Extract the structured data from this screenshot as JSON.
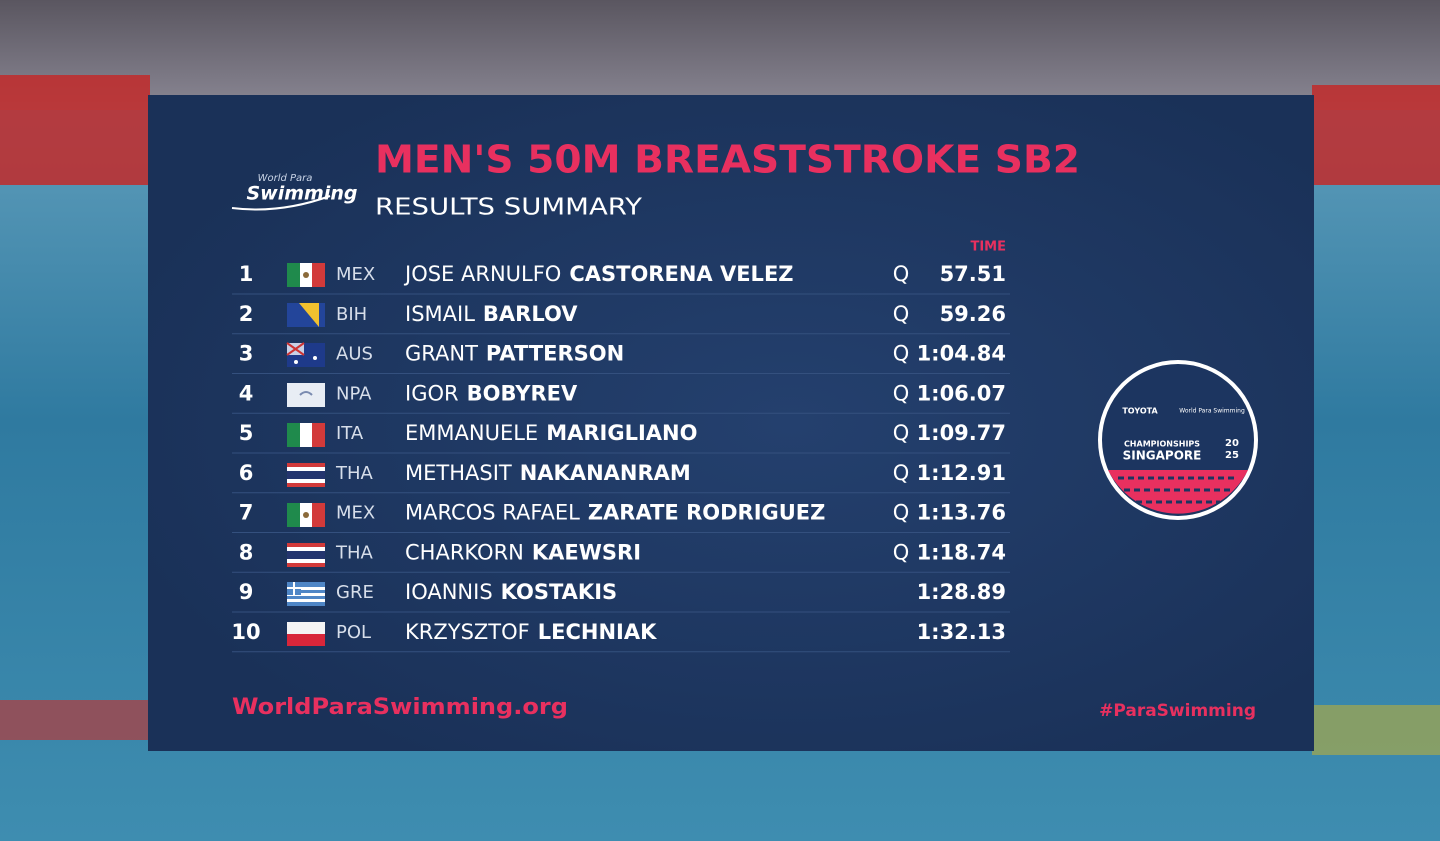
{
  "header": {
    "logo_top": "World Para",
    "logo_bottom": "Swimming",
    "title": "MEN'S 50M BREASTSTROKE SB2",
    "subtitle": "RESULTS SUMMARY"
  },
  "table": {
    "time_header": "TIME",
    "rows": [
      {
        "rank": 1,
        "country": "MEX",
        "first": "JOSE ARNULFO",
        "last": "CASTORENA VELEZ",
        "qualifier": "Q",
        "time": "57.51"
      },
      {
        "rank": 2,
        "country": "BIH",
        "first": "ISMAIL",
        "last": "BARLOV",
        "qualifier": "Q",
        "time": "59.26"
      },
      {
        "rank": 3,
        "country": "AUS",
        "first": "GRANT",
        "last": "PATTERSON",
        "qualifier": "Q",
        "time": "1:04.84"
      },
      {
        "rank": 4,
        "country": "NPA",
        "first": "IGOR",
        "last": "BOBYREV",
        "qualifier": "Q",
        "time": "1:06.07"
      },
      {
        "rank": 5,
        "country": "ITA",
        "first": "EMMANUELE",
        "last": "MARIGLIANO",
        "qualifier": "Q",
        "time": "1:09.77"
      },
      {
        "rank": 6,
        "country": "THA",
        "first": "METHASIT",
        "last": "NAKANANRAM",
        "qualifier": "Q",
        "time": "1:12.91"
      },
      {
        "rank": 7,
        "country": "MEX",
        "first": "MARCOS RAFAEL",
        "last": "ZARATE RODRIGUEZ",
        "qualifier": "Q",
        "time": "1:13.76"
      },
      {
        "rank": 8,
        "country": "THA",
        "first": "CHARKORN",
        "last": "KAEWSRI",
        "qualifier": "Q",
        "time": "1:18.74"
      },
      {
        "rank": 9,
        "country": "GRE",
        "first": "IOANNIS",
        "last": "KOSTAKIS",
        "time": "1:28.89"
      },
      {
        "rank": 10,
        "country": "POL",
        "first": "KRZYSZTOF",
        "last": "LECHNIAK",
        "time": "1:32.13"
      }
    ]
  },
  "badge": {
    "sponsor": "TOYOTA",
    "brand": "World Para Swimming",
    "line1": "CHAMPIONSHIPS",
    "line2": "SINGAPORE",
    "year_top": "20",
    "year_bottom": "25"
  },
  "footer": {
    "website": "WorldParaSwimming.org",
    "hashtag": "#ParaSwimming"
  }
}
